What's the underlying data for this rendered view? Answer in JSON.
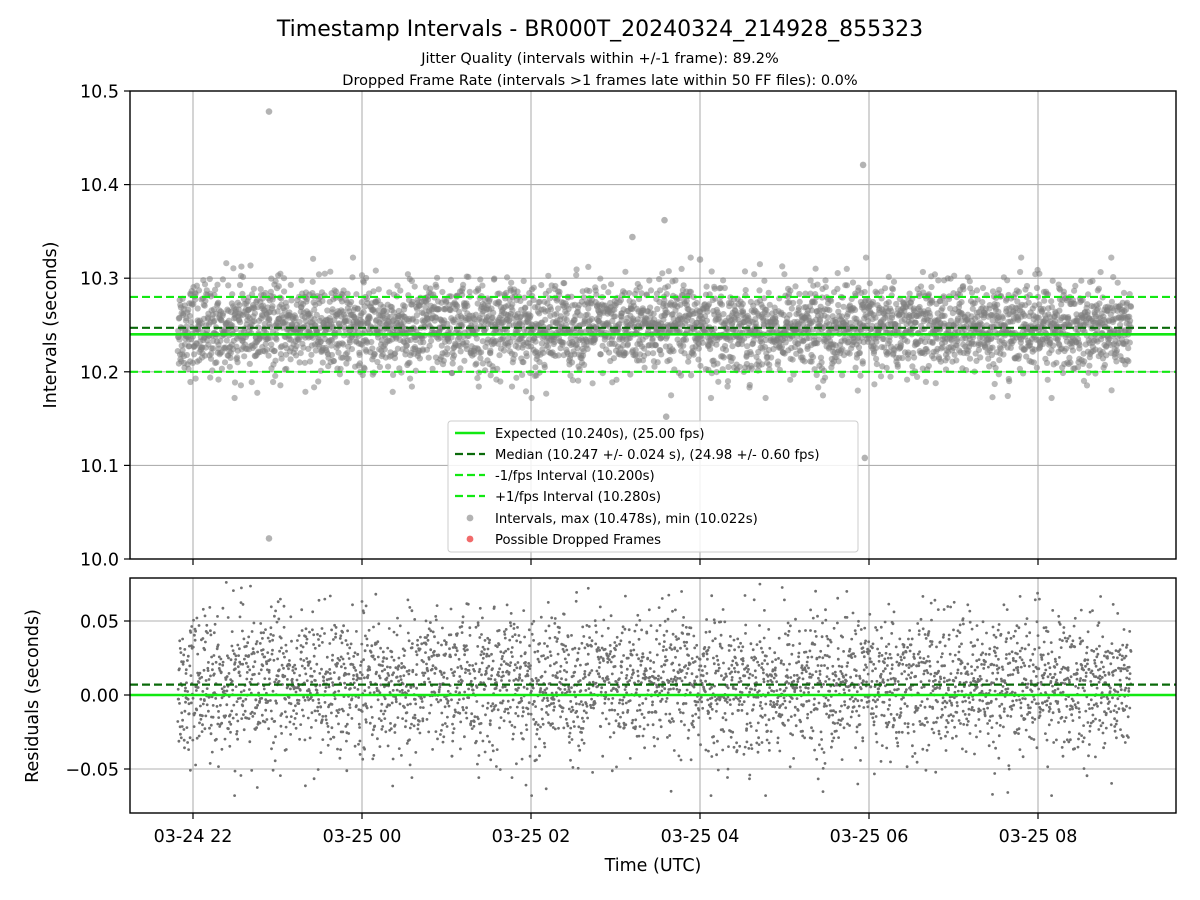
{
  "chart_data": [
    {
      "type": "scatter",
      "title": "Timestamp Intervals - BR000T_20240324_214928_855323",
      "subtitle_lines": [
        "Jitter Quality (intervals within +/-1 frame): 89.2%",
        "Dropped Frame Rate (intervals >1 frames late within 50 FF files): 0.0%"
      ],
      "ylabel": "Intervals (seconds)",
      "ylim": [
        10.0,
        10.5
      ],
      "yticks": [
        "10.0",
        "10.1",
        "10.2",
        "10.3",
        "10.4",
        "10.5"
      ],
      "grid": true,
      "legend_placement": "lower-center",
      "time_range_hours": [
        21.82,
        33.1
      ],
      "n_points": 3900,
      "reference_lines": [
        {
          "name": "Expected (10.240s), (25.00 fps)",
          "y": 10.24,
          "color": "#12e812",
          "style": "solid"
        },
        {
          "name": "Median (10.247 +/- 0.024 s), (24.98 +/- 0.60 fps)",
          "y": 10.247,
          "color": "#0a6a0a",
          "style": "dashed"
        },
        {
          "name": "-1/fps Interval (10.200s)",
          "y": 10.2,
          "color": "#12e812",
          "style": "dashed"
        },
        {
          "name": "+1/fps Interval (10.280s)",
          "y": 10.28,
          "color": "#12e812",
          "style": "dashed"
        }
      ],
      "series": [
        {
          "name": "Intervals, max (10.478s), min (10.022s)",
          "color": "#808080",
          "center": 10.247,
          "spread": 0.024
        },
        {
          "name": "Possible Dropped Frames",
          "color": "#f05a5a",
          "values": []
        }
      ],
      "outliers": [
        {
          "t": 22.9,
          "y": 10.478
        },
        {
          "t": 22.9,
          "y": 10.022
        },
        {
          "t": 29.93,
          "y": 10.421
        },
        {
          "t": 27.58,
          "y": 10.362
        },
        {
          "t": 27.2,
          "y": 10.344
        },
        {
          "t": 27.6,
          "y": 10.152
        },
        {
          "t": 29.95,
          "y": 10.108
        },
        {
          "t": 28.0,
          "y": 10.32
        }
      ]
    },
    {
      "type": "scatter",
      "ylabel": "Residuals (seconds)",
      "xlabel": "Time (UTC)",
      "ylim": [
        -0.08,
        0.08
      ],
      "yticks": [
        "0.05",
        "0.00",
        "−0.05"
      ],
      "xticks": [
        "03-24 22",
        "03-25 00",
        "03-25 02",
        "03-25 04",
        "03-25 06",
        "03-25 08"
      ],
      "grid": true,
      "reference_lines": [
        {
          "y": 0.0,
          "color": "#12e812",
          "style": "solid"
        },
        {
          "y": 0.007,
          "color": "#0a6a0a",
          "style": "dashed"
        }
      ],
      "series": [
        {
          "name": "Residuals",
          "color": "#707070",
          "center": 0.007,
          "spread": 0.024
        }
      ]
    }
  ]
}
